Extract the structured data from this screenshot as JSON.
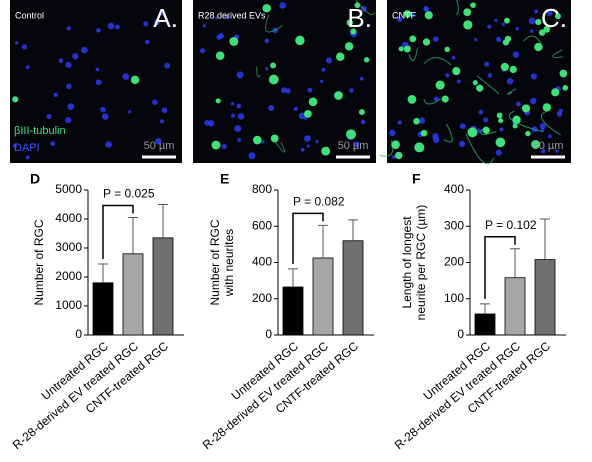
{
  "images": [
    {
      "label": "Control",
      "letter": "A.",
      "scale": "50 µm"
    },
    {
      "label": "R28 derived EVs",
      "letter": "B.",
      "scale": "50 µm"
    },
    {
      "label": "CNTF",
      "letter": "C.",
      "scale": "50 µm"
    }
  ],
  "legend": {
    "green": "βIII-tubulin",
    "blue": "DAPI"
  },
  "chart_data": [
    {
      "type": "bar",
      "panel": "D",
      "ylabel": [
        "Number of RGC"
      ],
      "categories": [
        "Untreated RGC",
        "R-28-derived EV treated RGC",
        "CNTF-treated RGC"
      ],
      "values": [
        1800,
        2800,
        3350
      ],
      "errors": [
        650,
        1250,
        1150
      ],
      "colors": [
        "#000000",
        "#a6a6a6",
        "#707070"
      ],
      "ylim": [
        0,
        5000
      ],
      "yticks": [
        0,
        1000,
        2000,
        3000,
        4000,
        5000
      ],
      "annotation": "P = 0.025"
    },
    {
      "type": "bar",
      "panel": "E",
      "ylabel": [
        "Number of RGC",
        "with neurites"
      ],
      "categories": [
        "Untreated RGC",
        "R-28-derived EV treated RGC",
        "CNTF-treated RGC"
      ],
      "values": [
        265,
        425,
        520
      ],
      "errors": [
        100,
        180,
        115
      ],
      "colors": [
        "#000000",
        "#a6a6a6",
        "#707070"
      ],
      "ylim": [
        0,
        800
      ],
      "yticks": [
        0,
        200,
        400,
        600,
        800
      ],
      "annotation": "P = 0.082"
    },
    {
      "type": "bar",
      "panel": "F",
      "ylabel": [
        "Length of longest",
        "neurite per RGC (µm)"
      ],
      "categories": [
        "Untreated RGC",
        "R-28-derived EV treated RGC",
        "CNTF-treated RGC"
      ],
      "values": [
        58,
        158,
        208
      ],
      "errors": [
        28,
        80,
        112
      ],
      "colors": [
        "#000000",
        "#a6a6a6",
        "#707070"
      ],
      "ylim": [
        0,
        400
      ],
      "yticks": [
        0,
        100,
        200,
        300,
        400
      ],
      "annotation": "P = 0.102"
    }
  ]
}
